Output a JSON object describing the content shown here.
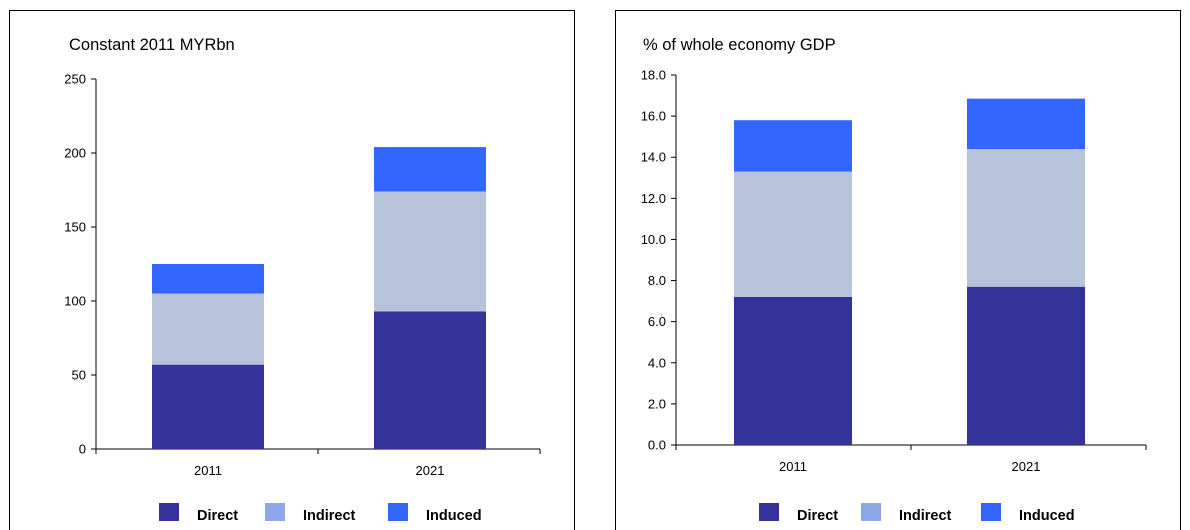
{
  "chart_data": [
    {
      "type": "bar",
      "stacked": true,
      "title": "Constant 2011 MYRbn",
      "xlabel": "",
      "ylabel": "",
      "categories": [
        "2011",
        "2021"
      ],
      "ylim": [
        0,
        250
      ],
      "yticks": [
        0,
        50,
        100,
        150,
        200,
        250
      ],
      "ytick_labels": [
        "0",
        "50",
        "100",
        "150",
        "200",
        "250"
      ],
      "series": [
        {
          "name": "Direct",
          "values": [
            57,
            93
          ],
          "color": "#333399"
        },
        {
          "name": "Indirect",
          "values": [
            48,
            81
          ],
          "color": "#b6c3da"
        },
        {
          "name": "Induced",
          "values": [
            20,
            30
          ],
          "color": "#3366ff"
        }
      ],
      "legend_position": "bottom",
      "grid": false
    },
    {
      "type": "bar",
      "stacked": true,
      "title": "% of whole economy GDP",
      "xlabel": "",
      "ylabel": "",
      "categories": [
        "2011",
        "2021"
      ],
      "ylim": [
        0,
        18
      ],
      "yticks": [
        0,
        2,
        4,
        6,
        8,
        10,
        12,
        14,
        16,
        18
      ],
      "ytick_labels": [
        "0.0",
        "2.0",
        "4.0",
        "6.0",
        "8.0",
        "10.0",
        "12.0",
        "14.0",
        "16.0",
        "18.0"
      ],
      "series": [
        {
          "name": "Direct",
          "values": [
            7.2,
            7.7
          ],
          "color": "#333399"
        },
        {
          "name": "Indirect",
          "values": [
            6.1,
            6.7
          ],
          "color": "#b6c3da"
        },
        {
          "name": "Induced",
          "values": [
            2.5,
            2.45
          ],
          "color": "#3366ff"
        }
      ],
      "legend_position": "bottom",
      "grid": false
    }
  ],
  "legend_swatch_colors": [
    "#333399",
    "#8da6e6",
    "#3366ff"
  ]
}
